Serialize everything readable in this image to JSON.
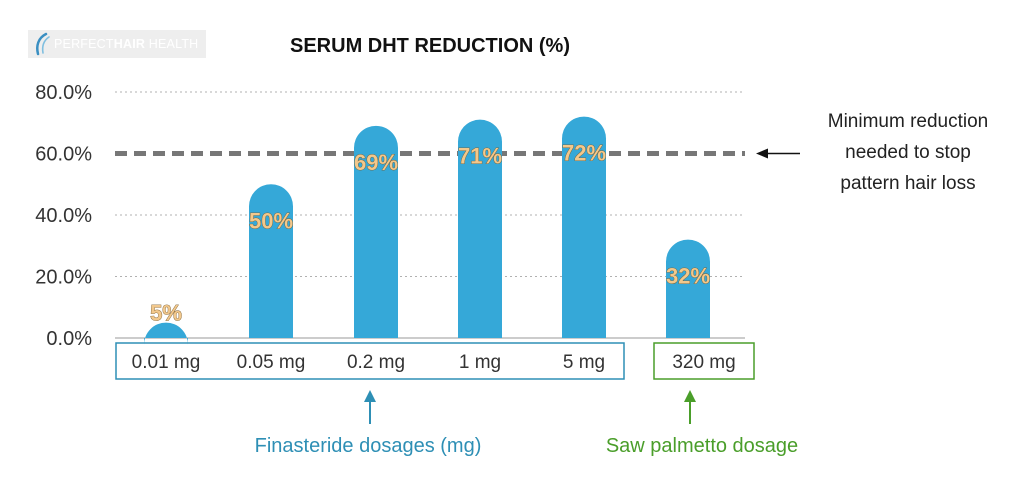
{
  "logo": {
    "text_light": "PERFECT",
    "text_bold": "HAIR",
    "text_end": "HEALTH"
  },
  "chart_data": {
    "type": "bar",
    "title": "SERUM DHT REDUCTION  (%)",
    "categories": [
      "0.01 mg",
      "0.05 mg",
      "0.2 mg",
      "1 mg",
      "5 mg",
      "320 mg"
    ],
    "values": [
      5,
      50,
      69,
      71,
      72,
      32
    ],
    "data_labels": [
      "5%",
      "50%",
      "69%",
      "71%",
      "72%",
      "32%"
    ],
    "ylim": [
      0,
      80
    ],
    "yticks": [
      0,
      20,
      40,
      60,
      80
    ],
    "ytick_labels": [
      "0.0%",
      "20.0%",
      "40.0%",
      "60.0%",
      "80.0%"
    ],
    "grid": true,
    "bar_color": "#35a8d8",
    "threshold": {
      "value": 60,
      "color": "#777777",
      "annotation": [
        "Minimum reduction",
        "needed to stop",
        "pattern hair loss"
      ]
    },
    "groups": [
      {
        "label": "Finasteride dosages (mg)",
        "categories": [
          0,
          1,
          2,
          3,
          4
        ],
        "color": "#2e8fb5"
      },
      {
        "label": "Saw palmetto dosage",
        "categories": [
          5
        ],
        "color": "#4a9e2a"
      }
    ]
  }
}
